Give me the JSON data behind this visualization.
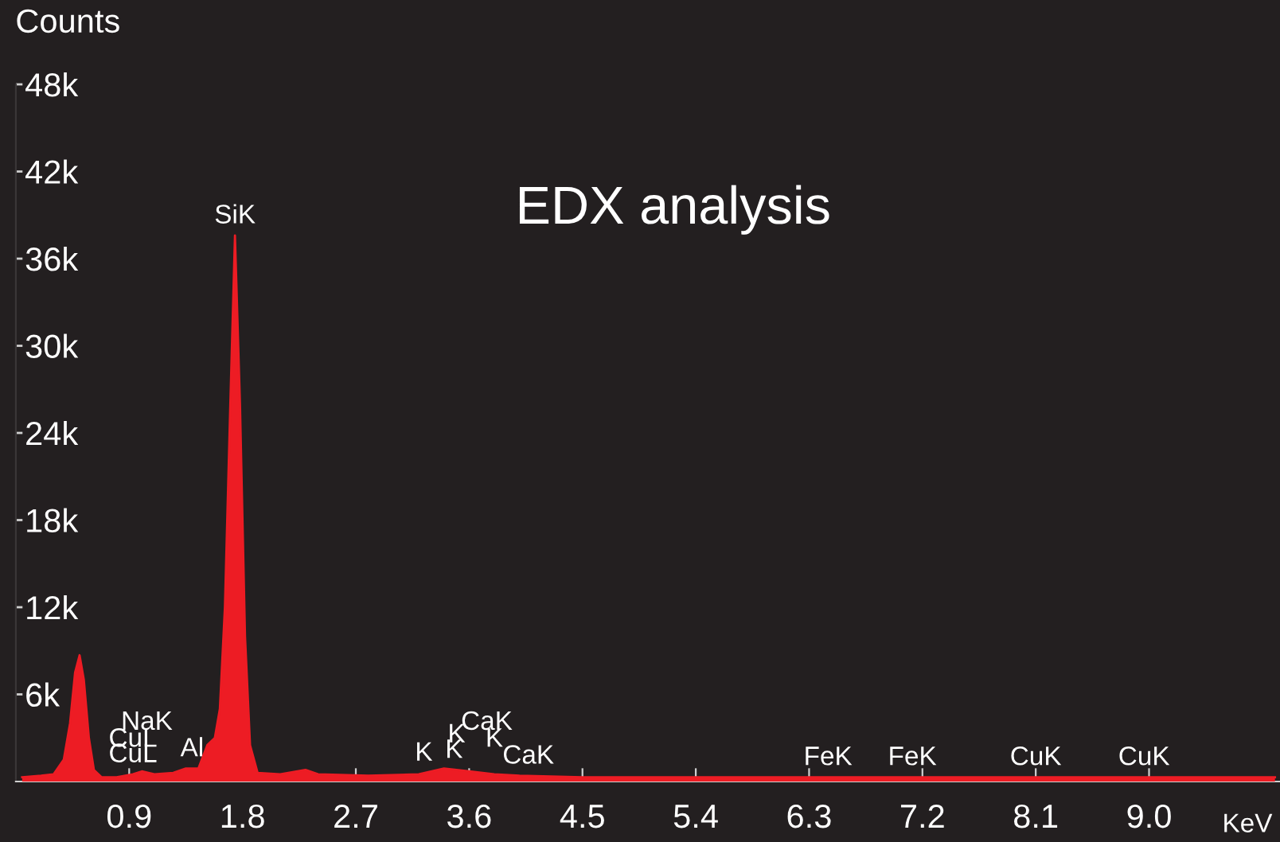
{
  "chart_data": {
    "type": "area",
    "title": "EDX analysis",
    "xlabel": "KeV",
    "ylabel": "Counts",
    "x": [
      0.05,
      0.2,
      0.3,
      0.38,
      0.43,
      0.47,
      0.506,
      0.54,
      0.58,
      0.62,
      0.68,
      0.8,
      0.93,
      1.0,
      1.1,
      1.25,
      1.35,
      1.45,
      1.52,
      1.58,
      1.62,
      1.66,
      1.7,
      1.74,
      1.78,
      1.82,
      1.86,
      1.92,
      2.1,
      2.3,
      2.4,
      2.8,
      3.2,
      3.4,
      3.6,
      3.8,
      4.0,
      4.5,
      5.0,
      6.0,
      7.0,
      8.0,
      9.0,
      10.0
    ],
    "series": [
      {
        "color": "#ed1c24",
        "values": [
          0.3,
          0.4,
          0.5,
          1.5,
          4,
          7.5,
          8.7,
          7,
          3,
          0.8,
          0.3,
          0.3,
          0.5,
          0.7,
          0.5,
          0.6,
          0.9,
          0.9,
          2.5,
          3.0,
          5,
          12,
          25,
          37.6,
          26,
          10,
          2.5,
          0.6,
          0.5,
          0.8,
          0.5,
          0.4,
          0.5,
          0.9,
          0.7,
          0.5,
          0.4,
          0.3,
          0.3,
          0.3,
          0.3,
          0.3,
          0.3,
          0.3
        ]
      }
    ],
    "xlim": [
      0,
      10.04
    ],
    "ylim": [
      0,
      48
    ],
    "xticks": [
      0.9,
      1.8,
      2.7,
      3.6,
      4.5,
      5.4,
      6.3,
      7.2,
      8.1,
      {
        "value": 9.0,
        "label": "9.0"
      }
    ],
    "yticks": [
      {
        "value": 6,
        "label": "6k"
      },
      {
        "value": 12,
        "label": "12k"
      },
      {
        "value": 18,
        "label": "18k"
      },
      {
        "value": 24,
        "label": "24k"
      },
      {
        "value": 30,
        "label": "30k"
      },
      {
        "value": 36,
        "label": "36k"
      },
      {
        "value": 42,
        "label": "42k"
      },
      {
        "value": 48,
        "label": "48k"
      }
    ],
    "annotations": [
      {
        "text": "SiK",
        "x": 1.74,
        "y": 37.6
      },
      {
        "text": "CuL",
        "x": 0.93,
        "y": 0.5
      },
      {
        "text": "CuL",
        "x": 0.93,
        "y": 0.5
      },
      {
        "text": "NaK",
        "x": 1.04,
        "y": 0.6
      },
      {
        "text": "Al",
        "x": 1.4,
        "y": 0.9
      },
      {
        "text": "K",
        "x": 3.24,
        "y": 0.6
      },
      {
        "text": "K",
        "x": 3.48,
        "y": 0.8
      },
      {
        "text": "CaK",
        "x": 4.07,
        "y": 0.4
      },
      {
        "text": "K",
        "x": 3.5,
        "y": 0.8
      },
      {
        "text": "K",
        "x": 3.8,
        "y": 0.5
      },
      {
        "text": "CaK",
        "x": 3.74,
        "y": 0.6
      },
      {
        "text": "FeK",
        "x": 6.45,
        "y": 0.3
      },
      {
        "text": "FeK",
        "x": 7.12,
        "y": 0.3
      },
      {
        "text": "CuK",
        "x": 8.1,
        "y": 0.3
      },
      {
        "text": "CuK",
        "x": 8.96,
        "y": 0.3
      }
    ],
    "grid": false,
    "legend": false
  }
}
